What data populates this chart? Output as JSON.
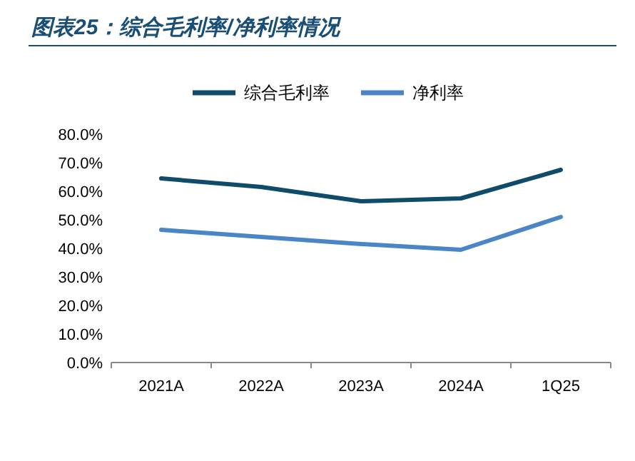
{
  "chart_data": {
    "type": "line",
    "title": "图表25：综合毛利率/净利率情况",
    "categories": [
      "2021A",
      "2022A",
      "2023A",
      "2024A",
      "1Q25"
    ],
    "series": [
      {
        "name": "综合毛利率",
        "color": "#0f4c6b",
        "values": [
          64.5,
          61.5,
          56.5,
          57.5,
          67.5
        ]
      },
      {
        "name": "净利率",
        "color": "#4a86c5",
        "values": [
          46.5,
          44,
          41.5,
          39.5,
          51
        ]
      }
    ],
    "ylim": [
      0,
      80
    ],
    "yticks": [
      {
        "value": 0,
        "label": "0.0%"
      },
      {
        "value": 10,
        "label": "10.0%"
      },
      {
        "value": 20,
        "label": "20.0%"
      },
      {
        "value": 30,
        "label": "30.0%"
      },
      {
        "value": 40,
        "label": "40.0%"
      },
      {
        "value": 50,
        "label": "50.0%"
      },
      {
        "value": 60,
        "label": "60.0%"
      },
      {
        "value": 70,
        "label": "70.0%"
      },
      {
        "value": 80,
        "label": "80.0%"
      }
    ],
    "legend": "top",
    "marker": "none",
    "line_style": "solid",
    "grid": false
  }
}
